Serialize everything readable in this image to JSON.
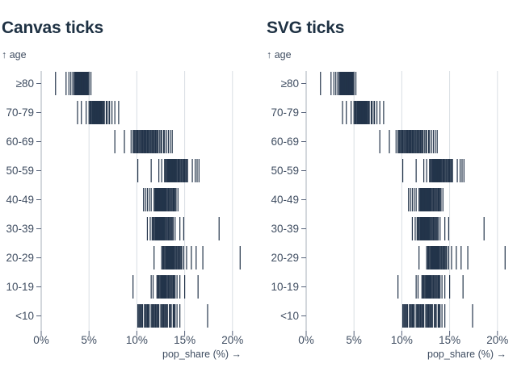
{
  "charts": [
    {
      "id": "canvas",
      "title": "Canvas ticks",
      "renderer": "canvas"
    },
    {
      "id": "svg",
      "title": "SVG ticks",
      "renderer": "svg"
    }
  ],
  "y_axis_label": "↑ age",
  "x_axis_label": "pop_share (%) →",
  "x_ticks": [
    "0%",
    "5%",
    "10%",
    "15%",
    "20%"
  ],
  "age_groups": [
    "≥80",
    "70-79",
    "60-69",
    "50-59",
    "40-49",
    "30-39",
    "20-29",
    "10-19",
    "<10"
  ],
  "colors": {
    "tick": "#23344a",
    "title": "#1e3143",
    "axis_text": "#3f4d61",
    "grid": "#d9dee3",
    "zero_line": "#a7afba",
    "axis_tick": "#57637a",
    "background": "#ffffff"
  },
  "chart_data": {
    "type": "tick",
    "title": "pop_share (%) by age group",
    "xlabel": "pop_share (%)",
    "ylabel": "age",
    "x_domain": [
      0,
      20.9
    ],
    "x_tick_values": [
      0,
      5,
      10,
      15,
      20
    ],
    "grid": "vertical",
    "series": [
      {
        "age": "≥80",
        "values": [
          1.5,
          2.6,
          2.9,
          3.1,
          3.3,
          3.45,
          3.55,
          3.6,
          3.65,
          3.7,
          3.75,
          3.8,
          3.85,
          3.9,
          3.95,
          4.0,
          4.05,
          4.1,
          4.12,
          4.15,
          4.2,
          4.22,
          4.25,
          4.3,
          4.32,
          4.35,
          4.4,
          4.42,
          4.45,
          4.5,
          4.52,
          4.55,
          4.6,
          4.65,
          4.7,
          4.75,
          4.8,
          4.85,
          4.9,
          5.0,
          5.2
        ]
      },
      {
        "age": "70-79",
        "values": [
          3.8,
          4.2,
          4.7,
          5.0,
          5.1,
          5.2,
          5.3,
          5.35,
          5.4,
          5.45,
          5.5,
          5.55,
          5.6,
          5.62,
          5.65,
          5.7,
          5.72,
          5.75,
          5.8,
          5.85,
          5.9,
          5.95,
          6.0,
          6.05,
          6.1,
          6.15,
          6.2,
          6.25,
          6.3,
          6.35,
          6.4,
          6.5,
          6.55,
          6.6,
          6.8,
          6.9,
          7.1,
          7.15,
          7.4,
          7.7,
          8.1
        ]
      },
      {
        "age": "60-69",
        "values": [
          7.7,
          8.7,
          9.4,
          9.6,
          9.7,
          9.8,
          9.9,
          10.0,
          10.1,
          10.2,
          10.3,
          10.4,
          10.5,
          10.55,
          10.6,
          10.7,
          10.75,
          10.8,
          10.9,
          10.95,
          11.0,
          11.1,
          11.15,
          11.2,
          11.3,
          11.4,
          11.5,
          11.6,
          11.7,
          11.8,
          11.9,
          12.0,
          12.1,
          12.2,
          12.35,
          12.5,
          12.6,
          12.8,
          12.9,
          13.1,
          13.3,
          13.5,
          13.7
        ]
      },
      {
        "age": "50-59",
        "values": [
          10.1,
          11.5,
          12.3,
          12.6,
          12.9,
          13.0,
          13.1,
          13.2,
          13.25,
          13.3,
          13.35,
          13.4,
          13.45,
          13.5,
          13.55,
          13.6,
          13.65,
          13.7,
          13.75,
          13.8,
          13.85,
          13.9,
          13.95,
          14.0,
          14.05,
          14.1,
          14.2,
          14.3,
          14.35,
          14.4,
          14.5,
          14.6,
          14.7,
          14.8,
          14.9,
          15.0,
          15.1,
          15.2,
          15.3,
          15.8,
          16.1,
          16.3,
          16.5
        ]
      },
      {
        "age": "40-49",
        "values": [
          10.7,
          10.9,
          11.1,
          11.3,
          11.5,
          11.8,
          11.9,
          12.0,
          12.05,
          12.1,
          12.15,
          12.2,
          12.25,
          12.3,
          12.35,
          12.4,
          12.45,
          12.5,
          12.55,
          12.6,
          12.65,
          12.7,
          12.75,
          12.8,
          12.85,
          12.9,
          12.95,
          13.0,
          13.05,
          13.1,
          13.2,
          13.3,
          13.4,
          13.5,
          13.6,
          13.7,
          13.8,
          13.9,
          14.0,
          14.1,
          14.3
        ]
      },
      {
        "age": "30-39",
        "values": [
          11.1,
          11.4,
          11.6,
          11.7,
          11.8,
          11.9,
          12.0,
          12.05,
          12.1,
          12.15,
          12.2,
          12.25,
          12.3,
          12.35,
          12.4,
          12.45,
          12.5,
          12.55,
          12.6,
          12.65,
          12.7,
          12.75,
          12.8,
          12.85,
          12.9,
          13.0,
          13.1,
          13.2,
          13.3,
          13.4,
          13.5,
          13.6,
          13.7,
          13.8,
          14.0,
          14.5,
          14.9,
          18.6
        ]
      },
      {
        "age": "20-29",
        "values": [
          11.8,
          12.6,
          12.7,
          12.8,
          12.9,
          13.0,
          13.05,
          13.1,
          13.15,
          13.2,
          13.25,
          13.3,
          13.35,
          13.4,
          13.45,
          13.5,
          13.55,
          13.6,
          13.65,
          13.7,
          13.75,
          13.8,
          13.9,
          14.0,
          14.1,
          14.2,
          14.3,
          14.4,
          14.5,
          14.6,
          14.7,
          14.9,
          15.2,
          15.7,
          16.2,
          16.9,
          20.8
        ]
      },
      {
        "age": "10-19",
        "values": [
          9.6,
          11.5,
          11.7,
          12.1,
          12.2,
          12.3,
          12.4,
          12.5,
          12.55,
          12.6,
          12.65,
          12.7,
          12.75,
          12.8,
          12.85,
          12.9,
          12.95,
          13.0,
          13.05,
          13.1,
          13.2,
          13.3,
          13.4,
          13.5,
          13.6,
          13.7,
          13.8,
          13.9,
          14.0,
          14.2,
          14.5,
          15.0,
          16.4
        ]
      },
      {
        "age": "<10",
        "values": [
          10.1,
          10.2,
          10.3,
          10.4,
          10.5,
          10.6,
          10.8,
          10.9,
          11.0,
          11.1,
          11.2,
          11.3,
          11.5,
          11.6,
          11.7,
          11.8,
          11.9,
          12.0,
          12.1,
          12.2,
          12.3,
          12.5,
          12.6,
          12.7,
          12.8,
          12.9,
          13.0,
          13.1,
          13.2,
          13.4,
          13.5,
          13.6,
          13.8,
          13.9,
          14.0,
          14.2,
          14.5,
          17.4
        ]
      }
    ]
  }
}
